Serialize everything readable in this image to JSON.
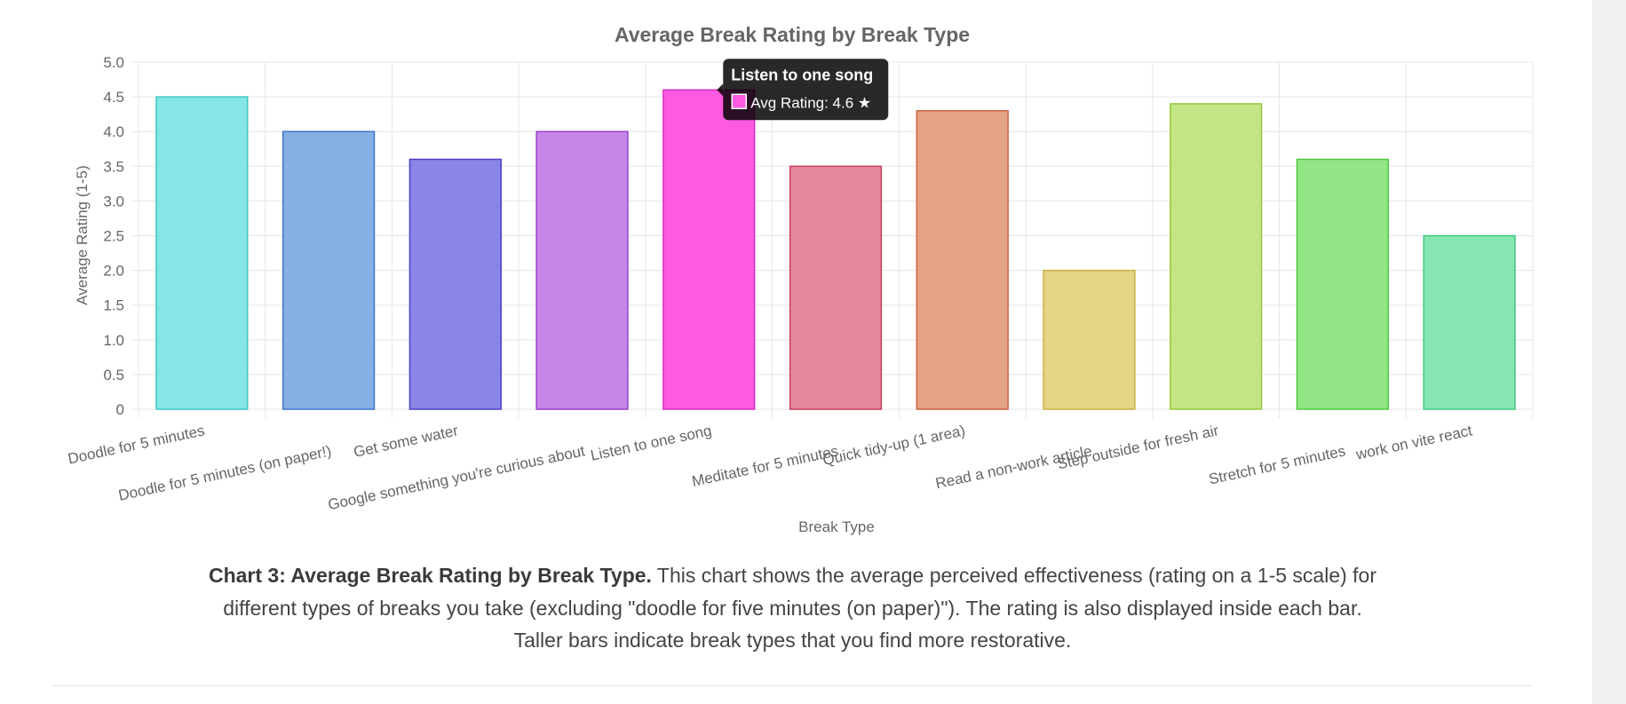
{
  "chart_data": {
    "type": "bar",
    "title": "Average Break Rating by Break Type",
    "xlabel": "Break Type",
    "ylabel": "Average Rating (1-5)",
    "ylim": [
      0,
      5
    ],
    "yticks": [
      "0",
      "0.5",
      "1.0",
      "1.5",
      "2.0",
      "2.5",
      "3.0",
      "3.5",
      "4.0",
      "4.5",
      "5.0"
    ],
    "grid": true,
    "legend": "none",
    "categories": [
      "Doodle for 5 minutes",
      "Doodle for 5 minutes (on paper!)",
      "Get some water",
      "Google something you're curious about",
      "Listen to one song",
      "Meditate for 5 minutes",
      "Quick tidy-up (1 area)",
      "Read a non-work article",
      "Step outside for fresh air",
      "Stretch for 5 minutes",
      "work on vite react"
    ],
    "series": [
      {
        "values": [
          4.5,
          4.0,
          3.6,
          4.0,
          4.6,
          3.5,
          4.3,
          2.0,
          4.4,
          3.6,
          2.5
        ],
        "fill_colors": [
          "#86e5e5",
          "#86b0e5",
          "#8b86e5",
          "#c586e7",
          "#fc5ae1",
          "#e5889d",
          "#e5a386",
          "#e5d386",
          "#c4e586",
          "#91e585",
          "#86e5b1"
        ],
        "border_colors": [
          "#3fc8c8",
          "#3f73c8",
          "#4a3fc8",
          "#9a3fc8",
          "#d82fbd",
          "#c83f5e",
          "#c8643f",
          "#c8b03f",
          "#95c83f",
          "#4fc83f",
          "#3fc881"
        ]
      }
    ],
    "tooltip": {
      "category_index": 4,
      "title": "Listen to one song",
      "body": "Avg Rating: 4.6 ★"
    }
  },
  "caption": {
    "bold": "Chart 3: Average Break Rating by Break Type.",
    "line1": " This chart shows the average perceived effectiveness (rating on a 1-5 scale) for",
    "line2": "different types of breaks you take (excluding \"doodle for five minutes (on paper)\"). The rating is also displayed inside each bar.",
    "line3": "Taller bars indicate break types that you find more restorative."
  },
  "colors": {
    "title": "#666666",
    "axis_text": "#666666",
    "grid": "#e5e5e5",
    "tooltip_bg": "#1a1a1a"
  }
}
